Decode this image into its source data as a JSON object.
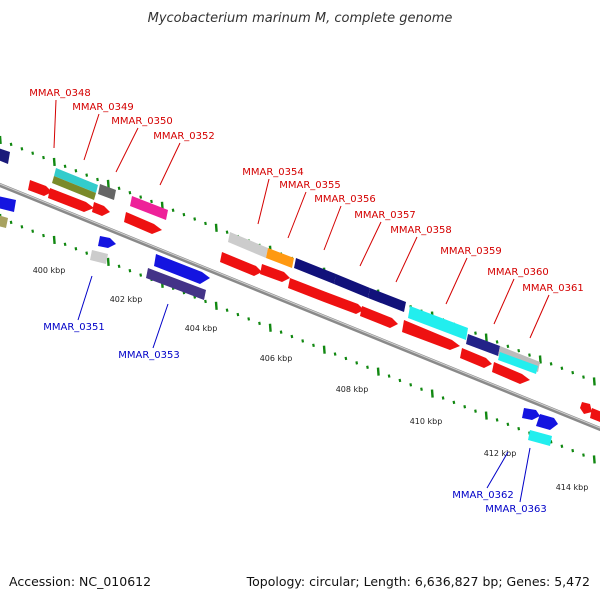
{
  "title": "Mycobacterium marinum M, complete genome",
  "footer": {
    "accession": "Accession: NC_010612",
    "summary": "Topology: circular; Length: 6,636,827 bp; Genes: 5,472"
  },
  "colors": {
    "upper_label": "#d40000",
    "lower_label": "#0000c8",
    "tick": "#118811",
    "backbone": "#8a8a8a"
  },
  "kbp_ticks": [
    {
      "kbp": 400,
      "label": "400 kbp"
    },
    {
      "kbp": 402,
      "label": "402 kbp"
    },
    {
      "kbp": 404,
      "label": "404 kbp"
    },
    {
      "kbp": 406,
      "label": "406 kbp"
    },
    {
      "kbp": 408,
      "label": "408 kbp"
    },
    {
      "kbp": 410,
      "label": "410 kbp"
    },
    {
      "kbp": 412,
      "label": "412 kbp"
    },
    {
      "kbp": 414,
      "label": "414 kbp"
    }
  ],
  "upper_labels": [
    "MMAR_0348",
    "MMAR_0349",
    "MMAR_0350",
    "MMAR_0352",
    "MMAR_0354",
    "MMAR_0355",
    "MMAR_0356",
    "MMAR_0357",
    "MMAR_0358",
    "MMAR_0359",
    "MMAR_0360",
    "MMAR_0361"
  ],
  "lower_labels": [
    "MMAR_0351",
    "MMAR_0353",
    "MMAR_0362",
    "MMAR_0363"
  ]
}
